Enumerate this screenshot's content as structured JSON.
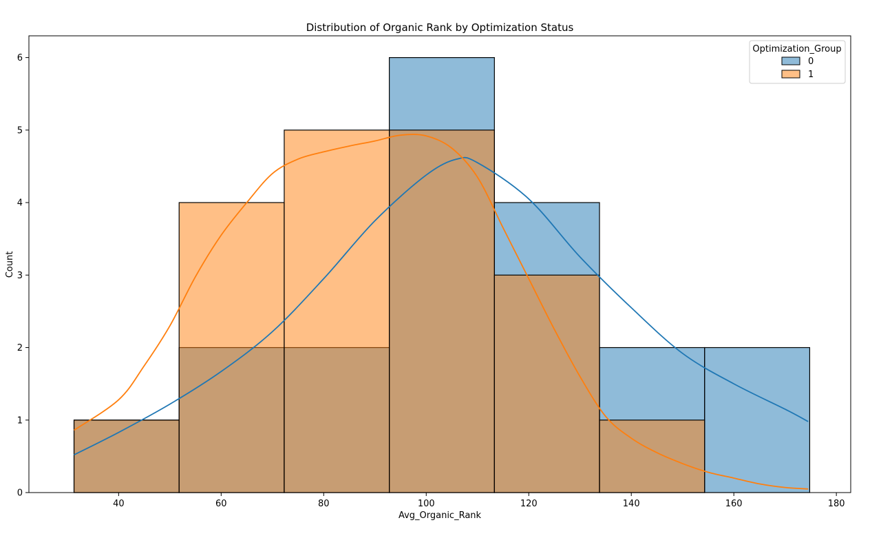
{
  "chart_data": {
    "type": "histogram",
    "title": "Distribution of Organic Rank by Optimization Status",
    "xlabel": "Avg_Organic_Rank",
    "ylabel": "Count",
    "xlim": [
      22.5,
      182.8
    ],
    "ylim": [
      0,
      6.3
    ],
    "x_ticks": [
      40,
      60,
      80,
      100,
      120,
      140,
      160,
      180
    ],
    "y_ticks": [
      0,
      1,
      2,
      3,
      4,
      5,
      6
    ],
    "bin_edges": [
      31.3,
      51.8,
      72.3,
      92.8,
      113.3,
      133.8,
      154.3,
      174.8
    ],
    "legend": {
      "title": "Optimization_Group",
      "position": "top-right",
      "entries": [
        {
          "label": "0",
          "color": "#1f77b4"
        },
        {
          "label": "1",
          "color": "#ff7f0e"
        }
      ]
    },
    "series": [
      {
        "name": "0",
        "color": "#1f77b4",
        "counts": [
          1,
          2,
          2,
          6,
          4,
          2,
          2
        ],
        "kde": {
          "x": [
            31.3,
            40,
            50,
            60,
            70,
            80,
            90,
            100,
            106,
            110,
            120,
            130,
            140,
            150,
            160,
            170,
            174.5
          ],
          "y": [
            0.52,
            0.83,
            1.22,
            1.67,
            2.22,
            2.95,
            3.75,
            4.38,
            4.6,
            4.55,
            4.05,
            3.25,
            2.55,
            1.92,
            1.5,
            1.15,
            0.98
          ]
        }
      },
      {
        "name": "1",
        "color": "#ff7f0e",
        "counts": [
          1,
          4,
          5,
          5,
          3,
          1,
          0
        ],
        "kde": {
          "x": [
            31.3,
            40,
            45,
            50,
            55,
            60,
            65,
            70,
            75,
            80,
            85,
            90,
            95,
            100,
            105,
            110,
            115,
            120,
            125,
            130,
            135,
            140,
            145,
            150,
            155,
            160,
            165,
            170,
            174.5
          ],
          "y": [
            0.86,
            1.28,
            1.75,
            2.3,
            2.98,
            3.55,
            4.0,
            4.4,
            4.6,
            4.7,
            4.78,
            4.85,
            4.93,
            4.92,
            4.75,
            4.35,
            3.65,
            2.95,
            2.25,
            1.6,
            1.05,
            0.75,
            0.55,
            0.4,
            0.28,
            0.2,
            0.12,
            0.07,
            0.05
          ]
        }
      }
    ]
  }
}
